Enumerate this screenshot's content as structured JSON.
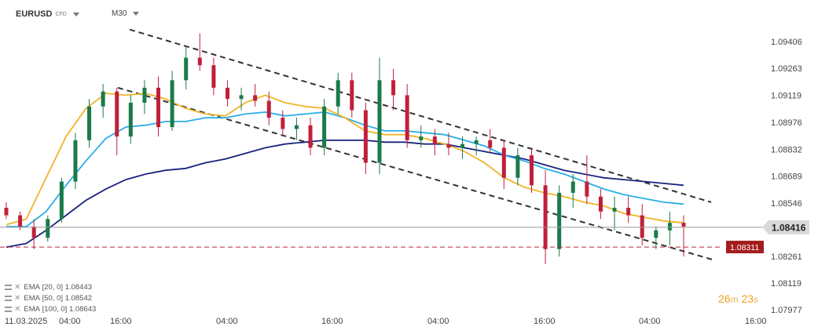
{
  "header": {
    "symbol": "EURUSD",
    "symbol_tag": "CFD",
    "timeframe": "M30"
  },
  "legend": [
    {
      "label": "EMA",
      "params": "[20, 0]",
      "value": "1.08443",
      "color": "#f0b429"
    },
    {
      "label": "EMA",
      "params": "[50, 0]",
      "value": "1.08542",
      "color": "#29aee6"
    },
    {
      "label": "EMA",
      "params": "[100, 0]",
      "value": "1.08643",
      "color": "#1a237e"
    }
  ],
  "timer": {
    "minutes": "26",
    "m": "m",
    "seconds": "23",
    "s": "s"
  },
  "chart_data": {
    "type": "candlestick",
    "y_ticks": [
      "1.09406",
      "1.09263",
      "1.09119",
      "1.08976",
      "1.08832",
      "1.08689",
      "1.08546",
      "1.08416",
      "1.08261",
      "1.08119",
      "1.07977"
    ],
    "ylim": [
      1.07977,
      1.09406
    ],
    "x_ticks": [
      "11.03.2025",
      "04:00",
      "16:00",
      "04:00",
      "16:00",
      "04:00",
      "16:00",
      "04:00",
      "16:00"
    ],
    "current_price": "1.08416",
    "marked_level": "1.08311",
    "colors": {
      "up": "#1b7a4a",
      "down": "#c0203c",
      "ema20": "#f0b429",
      "ema50": "#29aee6",
      "ema100": "#1a237e",
      "current": "#555555",
      "level": "#c0203c"
    },
    "channel": {
      "upper": [
        [
          1.0947,
          1.0855
        ]
      ],
      "lower": [
        [
          1.0916,
          1.0824
        ]
      ]
    },
    "ema20": [
      1.0843,
      1.0846,
      1.0868,
      1.089,
      1.0905,
      1.0913,
      1.0912,
      1.0913,
      1.091,
      1.0905,
      1.0902,
      1.0901,
      1.0908,
      1.0912,
      1.0908,
      1.0906,
      1.0905,
      1.09,
      1.0893,
      1.0891,
      1.0891,
      1.0889,
      1.0886,
      1.0882,
      1.0876,
      1.0868,
      1.0863,
      1.086,
      1.0858,
      1.0855,
      1.0853,
      1.0849,
      1.0847,
      1.0845,
      1.0844
    ],
    "ema50": [
      1.0842,
      1.0842,
      1.085,
      1.0864,
      1.0877,
      1.0889,
      1.0895,
      1.0896,
      1.0898,
      1.0898,
      1.09,
      1.09,
      1.0902,
      1.0903,
      1.0901,
      1.0902,
      1.0903,
      1.09,
      1.0896,
      1.0893,
      1.0893,
      1.0892,
      1.0891,
      1.0888,
      1.0885,
      1.088,
      1.0877,
      1.0873,
      1.087,
      1.0866,
      1.0862,
      1.0859,
      1.0857,
      1.0855,
      1.0854
    ],
    "ema100": [
      1.0831,
      1.0833,
      1.084,
      1.0848,
      1.0856,
      1.0862,
      1.0867,
      1.087,
      1.0872,
      1.0873,
      1.0876,
      1.0878,
      1.0881,
      1.0884,
      1.0886,
      1.0887,
      1.0888,
      1.0888,
      1.0888,
      1.0887,
      1.0887,
      1.0886,
      1.0886,
      1.0884,
      1.0882,
      1.088,
      1.0878,
      1.0875,
      1.0872,
      1.087,
      1.0868,
      1.0867,
      1.0866,
      1.0865,
      1.0864
    ],
    "candles": [
      [
        1.0852,
        1.0855,
        1.0846,
        1.0848
      ],
      [
        1.0848,
        1.085,
        1.084,
        1.0842
      ],
      [
        1.0842,
        1.0846,
        1.083,
        1.0836
      ],
      [
        1.0836,
        1.0848,
        1.0834,
        1.0846
      ],
      [
        1.0846,
        1.0868,
        1.0844,
        1.0866
      ],
      [
        1.0866,
        1.0892,
        1.0862,
        1.0888
      ],
      [
        1.0888,
        1.091,
        1.0884,
        1.0906
      ],
      [
        1.0906,
        1.0918,
        1.09,
        1.0914
      ],
      [
        1.0914,
        1.0916,
        1.088,
        1.089
      ],
      [
        1.089,
        1.0912,
        1.0886,
        1.0908
      ],
      [
        1.0908,
        1.092,
        1.0902,
        1.0916
      ],
      [
        1.0916,
        1.0922,
        1.089,
        1.0895
      ],
      [
        1.0895,
        1.0925,
        1.0893,
        1.092
      ],
      [
        1.092,
        1.0938,
        1.0915,
        1.0932
      ],
      [
        1.0932,
        1.0945,
        1.0925,
        1.0928
      ],
      [
        1.0928,
        1.0932,
        1.0912,
        1.0916
      ],
      [
        1.0916,
        1.092,
        1.0906,
        1.091
      ],
      [
        1.091,
        1.0916,
        1.0904,
        1.0912
      ],
      [
        1.0912,
        1.0918,
        1.0906,
        1.0909
      ],
      [
        1.0909,
        1.0914,
        1.0896,
        1.09
      ],
      [
        1.09,
        1.0904,
        1.089,
        1.0894
      ],
      [
        1.0894,
        1.09,
        1.0888,
        1.0896
      ],
      [
        1.0896,
        1.09,
        1.088,
        1.0884
      ],
      [
        1.0884,
        1.091,
        1.088,
        1.0906
      ],
      [
        1.0906,
        1.0924,
        1.0902,
        1.092
      ],
      [
        1.092,
        1.0924,
        1.09,
        1.0904
      ],
      [
        1.0904,
        1.0908,
        1.087,
        1.0876
      ],
      [
        1.0876,
        1.0932,
        1.087,
        1.092
      ],
      [
        1.092,
        1.0926,
        1.0904,
        1.0912
      ],
      [
        1.0912,
        1.0918,
        1.0884,
        1.0888
      ],
      [
        1.0888,
        1.0896,
        1.0884,
        1.089
      ],
      [
        1.089,
        1.0894,
        1.088,
        1.0886
      ],
      [
        1.0886,
        1.0892,
        1.088,
        1.0884
      ],
      [
        1.0884,
        1.089,
        1.0878,
        1.0886
      ],
      [
        1.0886,
        1.089,
        1.088,
        1.0888
      ],
      [
        1.0888,
        1.0894,
        1.0882,
        1.0884
      ],
      [
        1.0884,
        1.0888,
        1.0862,
        1.0868
      ],
      [
        1.0868,
        1.0884,
        1.0864,
        1.088
      ],
      [
        1.088,
        1.0884,
        1.086,
        1.0864
      ],
      [
        1.0864,
        1.0872,
        1.0822,
        1.083
      ],
      [
        1.083,
        1.0864,
        1.0826,
        1.086
      ],
      [
        1.086,
        1.087,
        1.0852,
        1.0866
      ],
      [
        1.0866,
        1.088,
        1.0854,
        1.0858
      ],
      [
        1.0858,
        1.0862,
        1.0846,
        1.085
      ],
      [
        1.085,
        1.0858,
        1.084,
        1.0852
      ],
      [
        1.0852,
        1.0858,
        1.0844,
        1.0848
      ],
      [
        1.0848,
        1.0854,
        1.0832,
        1.0836
      ],
      [
        1.0836,
        1.0842,
        1.083,
        1.084
      ],
      [
        1.084,
        1.085,
        1.0832,
        1.0844
      ],
      [
        1.0844,
        1.0848,
        1.0826,
        1.0842
      ]
    ]
  }
}
